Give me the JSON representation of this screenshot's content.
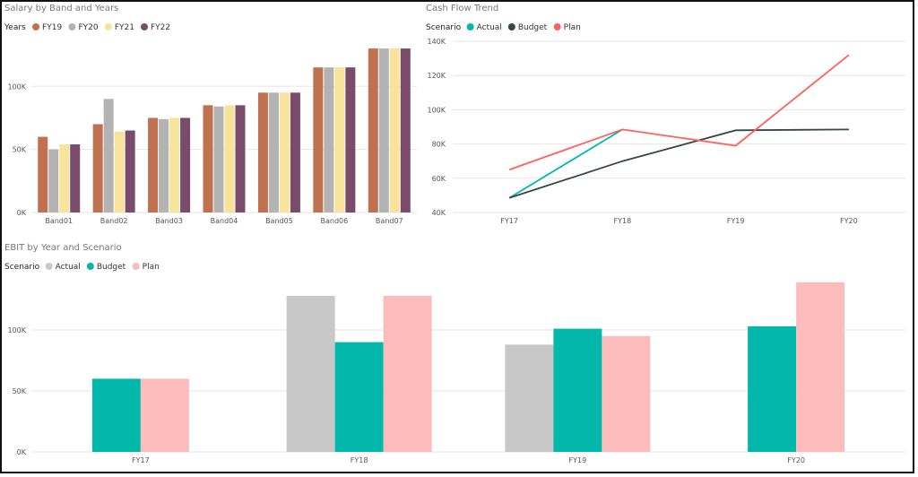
{
  "colors": {
    "fy19": "#c07150",
    "fy20": "#b3b3b3",
    "fy21": "#f7e39a",
    "fy22": "#7a4b6a",
    "actual": "#01b8aa",
    "budget": "#374649",
    "plan": "#fd625e",
    "ebit_actual": "#c8c8c8",
    "ebit_budget": "#01b8aa",
    "ebit_plan": "#fbbcbb",
    "grid": "#e6e6e6"
  },
  "chart_data": [
    {
      "type": "bar",
      "title": "Salary by Band and Years",
      "legend_title": "Years",
      "categories": [
        "Band01",
        "Band02",
        "Band03",
        "Band04",
        "Band05",
        "Band06",
        "Band07"
      ],
      "series": [
        {
          "name": "FY19",
          "values": [
            60000,
            70000,
            75000,
            85000,
            95000,
            115000,
            130000
          ]
        },
        {
          "name": "FY20",
          "values": [
            50000,
            90000,
            74000,
            84000,
            95000,
            115000,
            130000
          ]
        },
        {
          "name": "FY21",
          "values": [
            54000,
            64000,
            75000,
            85000,
            95000,
            115000,
            130000
          ]
        },
        {
          "name": "FY22",
          "values": [
            54000,
            65000,
            75000,
            85000,
            95000,
            115000,
            130000
          ]
        }
      ],
      "yticks": [
        "0K",
        "50K",
        "100K"
      ],
      "ylim": [
        0,
        140000
      ],
      "legend_position": "top-left",
      "grid": true
    },
    {
      "type": "line",
      "title": "Cash Flow Trend",
      "legend_title": "Scenario",
      "categories": [
        "FY17",
        "FY18",
        "FY19",
        "FY20"
      ],
      "series": [
        {
          "name": "Actual",
          "values": [
            48500,
            88500,
            null,
            null
          ]
        },
        {
          "name": "Budget",
          "values": [
            48500,
            70000,
            88000,
            88500
          ]
        },
        {
          "name": "Plan",
          "values": [
            65000,
            88500,
            79000,
            132000
          ]
        }
      ],
      "yticks": [
        "40K",
        "60K",
        "80K",
        "100K",
        "120K",
        "140K"
      ],
      "ylim": [
        40000,
        140000
      ],
      "legend_position": "top-left",
      "grid": true
    },
    {
      "type": "bar",
      "title": "EBIT by Year and Scenario",
      "legend_title": "Scenario",
      "categories": [
        "FY17",
        "FY18",
        "FY19",
        "FY20"
      ],
      "series": [
        {
          "name": "Actual",
          "values": [
            null,
            128000,
            88000,
            null
          ]
        },
        {
          "name": "Budget",
          "values": [
            60000,
            90000,
            101000,
            103000
          ]
        },
        {
          "name": "Plan",
          "values": [
            60000,
            128000,
            95000,
            139000
          ]
        }
      ],
      "yticks": [
        "0K",
        "50K",
        "100K"
      ],
      "ylim": [
        0,
        150000
      ],
      "legend_position": "top-left",
      "grid": true
    }
  ]
}
